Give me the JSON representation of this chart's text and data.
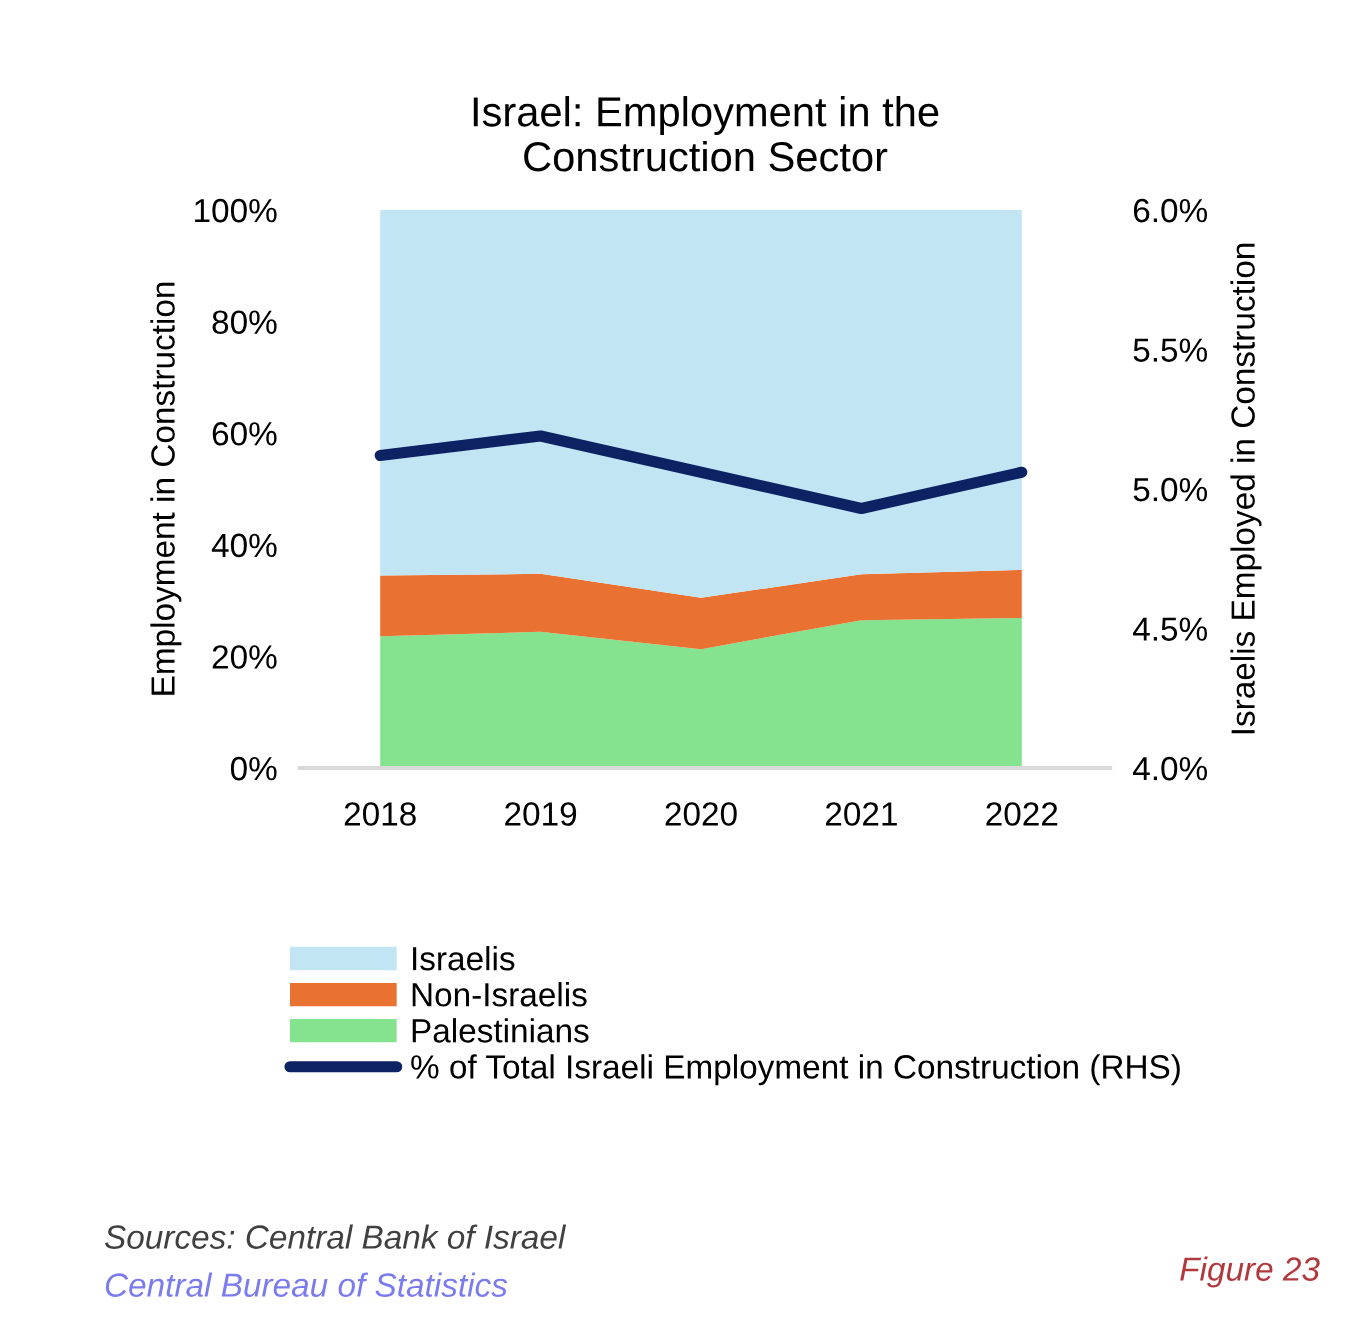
{
  "chart_data": {
    "type": "area",
    "title": "Israel: Employment in the\nConstruction Sector",
    "ylabel": "Employment in Construction",
    "y2label": "Israelis Employed in Construction",
    "categories": [
      "2018",
      "2019",
      "2020",
      "2021",
      "2022"
    ],
    "stacked": true,
    "series": [
      {
        "name": "Palestinians",
        "color": "#85e28f",
        "values": [
          23.6,
          24.4,
          21.3,
          26.5,
          26.9
        ]
      },
      {
        "name": "Non-Israelis",
        "color": "#e97132",
        "values": [
          10.9,
          10.4,
          9.2,
          8.2,
          8.6
        ]
      },
      {
        "name": "Israelis",
        "color": "#c2e5f4",
        "values": [
          65.5,
          65.2,
          69.5,
          65.3,
          64.5
        ]
      },
      {
        "name": "% of Total Israeli Employment in Construction (RHS)",
        "type": "line",
        "axis": "y2",
        "color": "#0c2263",
        "values": [
          5.12,
          5.19,
          5.06,
          4.93,
          5.06
        ]
      }
    ],
    "ylim": [
      0,
      100
    ],
    "yticks": [
      {
        "value": 0,
        "label": "0%"
      },
      {
        "value": 20,
        "label": "20%"
      },
      {
        "value": 40,
        "label": "40%"
      },
      {
        "value": 60,
        "label": "60%"
      },
      {
        "value": 80,
        "label": "80%"
      },
      {
        "value": 100,
        "label": "100%"
      }
    ],
    "y2lim": [
      4.0,
      6.0
    ],
    "y2ticks": [
      {
        "value": 4.0,
        "label": "4.0%"
      },
      {
        "value": 4.5,
        "label": "4.5%"
      },
      {
        "value": 5.0,
        "label": "5.0%"
      },
      {
        "value": 5.5,
        "label": "5.5%"
      },
      {
        "value": 6.0,
        "label": "6.0%"
      }
    ],
    "grid": false,
    "legend": "bottom",
    "annotations": [
      "Sources: Central Bank of Israel",
      "Central Bureau of Statistics",
      "Figure 23"
    ]
  }
}
